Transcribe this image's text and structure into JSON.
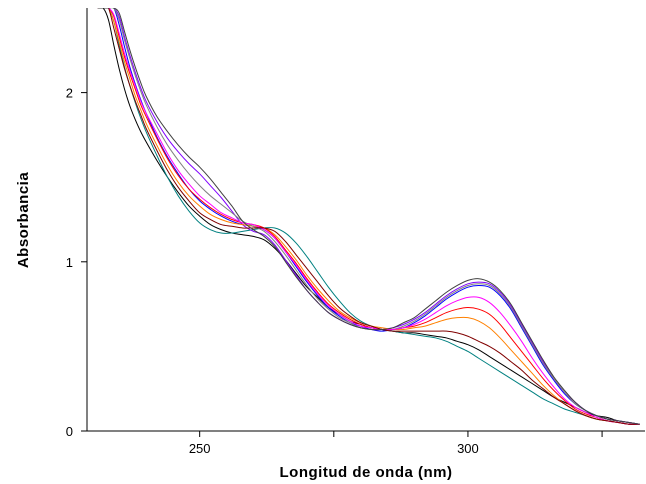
{
  "chart_data": {
    "type": "line",
    "title": "",
    "xlabel": "Longitud de onda (nm)",
    "ylabel": "Absorbancia",
    "xlim": [
      229,
      333
    ],
    "ylim": [
      0,
      2.5
    ],
    "x_ticks_major": [
      250,
      300
    ],
    "x_ticks_minor": [
      275,
      325
    ],
    "y_ticks": [
      0,
      1,
      2
    ],
    "grid": false,
    "legend": "none",
    "x": [
      231,
      232,
      233,
      234,
      235,
      236,
      237,
      238,
      239,
      240,
      242,
      244,
      246,
      248,
      250,
      252,
      254,
      256,
      258,
      260,
      262,
      264,
      266,
      268,
      270,
      272,
      274,
      276,
      278,
      280,
      282,
      284,
      286,
      288,
      290,
      292,
      294,
      296,
      298,
      300,
      302,
      304,
      306,
      308,
      310,
      312,
      314,
      316,
      318,
      320,
      322,
      324,
      326,
      328,
      330,
      332
    ],
    "series": [
      {
        "color": "#000000",
        "values": [
          2.5,
          2.5,
          2.43,
          2.28,
          2.14,
          2.02,
          1.92,
          1.84,
          1.77,
          1.71,
          1.6,
          1.5,
          1.41,
          1.33,
          1.27,
          1.22,
          1.19,
          1.17,
          1.16,
          1.15,
          1.13,
          1.08,
          1.01,
          0.93,
          0.85,
          0.79,
          0.73,
          0.69,
          0.65,
          0.63,
          0.61,
          0.6,
          0.59,
          0.58,
          0.58,
          0.57,
          0.56,
          0.55,
          0.53,
          0.51,
          0.48,
          0.44,
          0.4,
          0.36,
          0.32,
          0.28,
          0.24,
          0.2,
          0.17,
          0.14,
          0.11,
          0.09,
          0.08,
          0.06,
          0.05,
          0.04
        ]
      },
      {
        "color": "#008080",
        "values": [
          2.5,
          2.5,
          2.5,
          2.42,
          2.28,
          2.15,
          2.04,
          1.94,
          1.85,
          1.77,
          1.63,
          1.5,
          1.39,
          1.3,
          1.23,
          1.19,
          1.17,
          1.17,
          1.18,
          1.19,
          1.2,
          1.2,
          1.17,
          1.11,
          1.03,
          0.94,
          0.85,
          0.77,
          0.7,
          0.65,
          0.62,
          0.6,
          0.59,
          0.58,
          0.57,
          0.56,
          0.55,
          0.53,
          0.5,
          0.47,
          0.43,
          0.39,
          0.35,
          0.31,
          0.27,
          0.23,
          0.19,
          0.16,
          0.13,
          0.11,
          0.09,
          0.07,
          0.06,
          0.05,
          0.04,
          0.04
        ]
      },
      {
        "color": "#0000ff",
        "values": [
          2.5,
          2.5,
          2.5,
          2.5,
          2.4,
          2.27,
          2.15,
          2.05,
          1.96,
          1.88,
          1.74,
          1.62,
          1.52,
          1.43,
          1.36,
          1.31,
          1.27,
          1.24,
          1.22,
          1.21,
          1.19,
          1.14,
          1.06,
          0.97,
          0.88,
          0.8,
          0.73,
          0.68,
          0.64,
          0.62,
          0.6,
          0.59,
          0.6,
          0.61,
          0.64,
          0.68,
          0.73,
          0.78,
          0.82,
          0.85,
          0.86,
          0.85,
          0.8,
          0.72,
          0.61,
          0.5,
          0.39,
          0.3,
          0.22,
          0.16,
          0.12,
          0.09,
          0.07,
          0.06,
          0.05,
          0.04
        ]
      },
      {
        "color": "#8000ff",
        "values": [
          2.5,
          2.5,
          2.5,
          2.5,
          2.45,
          2.33,
          2.22,
          2.12,
          2.03,
          1.95,
          1.83,
          1.73,
          1.65,
          1.58,
          1.52,
          1.45,
          1.38,
          1.3,
          1.22,
          1.18,
          1.16,
          1.1,
          1.01,
          0.92,
          0.83,
          0.76,
          0.7,
          0.66,
          0.63,
          0.61,
          0.6,
          0.6,
          0.61,
          0.63,
          0.66,
          0.7,
          0.75,
          0.8,
          0.84,
          0.87,
          0.88,
          0.87,
          0.82,
          0.74,
          0.63,
          0.52,
          0.41,
          0.31,
          0.23,
          0.17,
          0.12,
          0.09,
          0.07,
          0.06,
          0.05,
          0.04
        ]
      },
      {
        "color": "#ff8000",
        "values": [
          2.5,
          2.5,
          2.5,
          2.42,
          2.3,
          2.18,
          2.08,
          1.98,
          1.9,
          1.82,
          1.69,
          1.57,
          1.47,
          1.39,
          1.33,
          1.28,
          1.25,
          1.23,
          1.22,
          1.21,
          1.2,
          1.16,
          1.09,
          1.01,
          0.92,
          0.84,
          0.77,
          0.71,
          0.67,
          0.64,
          0.62,
          0.61,
          0.6,
          0.6,
          0.61,
          0.62,
          0.64,
          0.66,
          0.67,
          0.67,
          0.65,
          0.61,
          0.55,
          0.48,
          0.41,
          0.34,
          0.27,
          0.21,
          0.16,
          0.12,
          0.09,
          0.07,
          0.06,
          0.05,
          0.04,
          0.04
        ]
      },
      {
        "color": "#ff0000",
        "values": [
          2.5,
          2.5,
          2.5,
          2.45,
          2.33,
          2.21,
          2.11,
          2.02,
          1.93,
          1.86,
          1.73,
          1.61,
          1.51,
          1.43,
          1.37,
          1.32,
          1.28,
          1.25,
          1.23,
          1.22,
          1.2,
          1.15,
          1.07,
          0.99,
          0.9,
          0.82,
          0.75,
          0.7,
          0.66,
          0.63,
          0.61,
          0.6,
          0.6,
          0.61,
          0.62,
          0.64,
          0.67,
          0.7,
          0.72,
          0.73,
          0.72,
          0.69,
          0.63,
          0.55,
          0.47,
          0.39,
          0.31,
          0.24,
          0.18,
          0.13,
          0.1,
          0.08,
          0.06,
          0.05,
          0.04,
          0.04
        ]
      },
      {
        "color": "#808080",
        "values": [
          2.5,
          2.5,
          2.5,
          2.5,
          2.43,
          2.31,
          2.2,
          2.1,
          2.01,
          1.93,
          1.8,
          1.69,
          1.6,
          1.52,
          1.45,
          1.39,
          1.34,
          1.29,
          1.24,
          1.21,
          1.18,
          1.12,
          1.04,
          0.95,
          0.86,
          0.78,
          0.72,
          0.67,
          0.64,
          0.61,
          0.6,
          0.6,
          0.6,
          0.62,
          0.65,
          0.69,
          0.74,
          0.79,
          0.83,
          0.86,
          0.87,
          0.86,
          0.81,
          0.73,
          0.62,
          0.51,
          0.4,
          0.31,
          0.23,
          0.16,
          0.12,
          0.09,
          0.07,
          0.06,
          0.05,
          0.04
        ]
      },
      {
        "color": "#ff00ff",
        "values": [
          2.5,
          2.5,
          2.5,
          2.46,
          2.35,
          2.23,
          2.13,
          2.04,
          1.95,
          1.88,
          1.76,
          1.64,
          1.54,
          1.46,
          1.39,
          1.34,
          1.29,
          1.26,
          1.23,
          1.22,
          1.19,
          1.14,
          1.06,
          0.98,
          0.89,
          0.81,
          0.74,
          0.69,
          0.65,
          0.62,
          0.61,
          0.6,
          0.6,
          0.61,
          0.63,
          0.66,
          0.7,
          0.74,
          0.77,
          0.79,
          0.79,
          0.76,
          0.7,
          0.62,
          0.53,
          0.43,
          0.34,
          0.26,
          0.19,
          0.14,
          0.11,
          0.08,
          0.06,
          0.05,
          0.04,
          0.04
        ]
      },
      {
        "color": "#800000",
        "values": [
          2.5,
          2.5,
          2.5,
          2.38,
          2.26,
          2.14,
          2.04,
          1.95,
          1.87,
          1.79,
          1.66,
          1.54,
          1.44,
          1.36,
          1.29,
          1.25,
          1.22,
          1.21,
          1.2,
          1.2,
          1.2,
          1.18,
          1.12,
          1.04,
          0.96,
          0.88,
          0.8,
          0.73,
          0.68,
          0.64,
          0.62,
          0.6,
          0.59,
          0.59,
          0.59,
          0.59,
          0.59,
          0.59,
          0.58,
          0.56,
          0.53,
          0.5,
          0.46,
          0.41,
          0.36,
          0.3,
          0.25,
          0.2,
          0.16,
          0.12,
          0.09,
          0.07,
          0.06,
          0.05,
          0.04,
          0.04
        ]
      },
      {
        "color": "#404040",
        "values": [
          2.5,
          2.5,
          2.5,
          2.5,
          2.47,
          2.36,
          2.25,
          2.15,
          2.06,
          1.98,
          1.86,
          1.77,
          1.69,
          1.62,
          1.56,
          1.49,
          1.41,
          1.33,
          1.24,
          1.19,
          1.15,
          1.09,
          1.0,
          0.91,
          0.83,
          0.76,
          0.7,
          0.66,
          0.63,
          0.61,
          0.6,
          0.6,
          0.61,
          0.64,
          0.67,
          0.72,
          0.77,
          0.82,
          0.86,
          0.89,
          0.9,
          0.88,
          0.83,
          0.75,
          0.64,
          0.53,
          0.42,
          0.32,
          0.24,
          0.17,
          0.12,
          0.09,
          0.07,
          0.06,
          0.05,
          0.04
        ]
      }
    ]
  }
}
